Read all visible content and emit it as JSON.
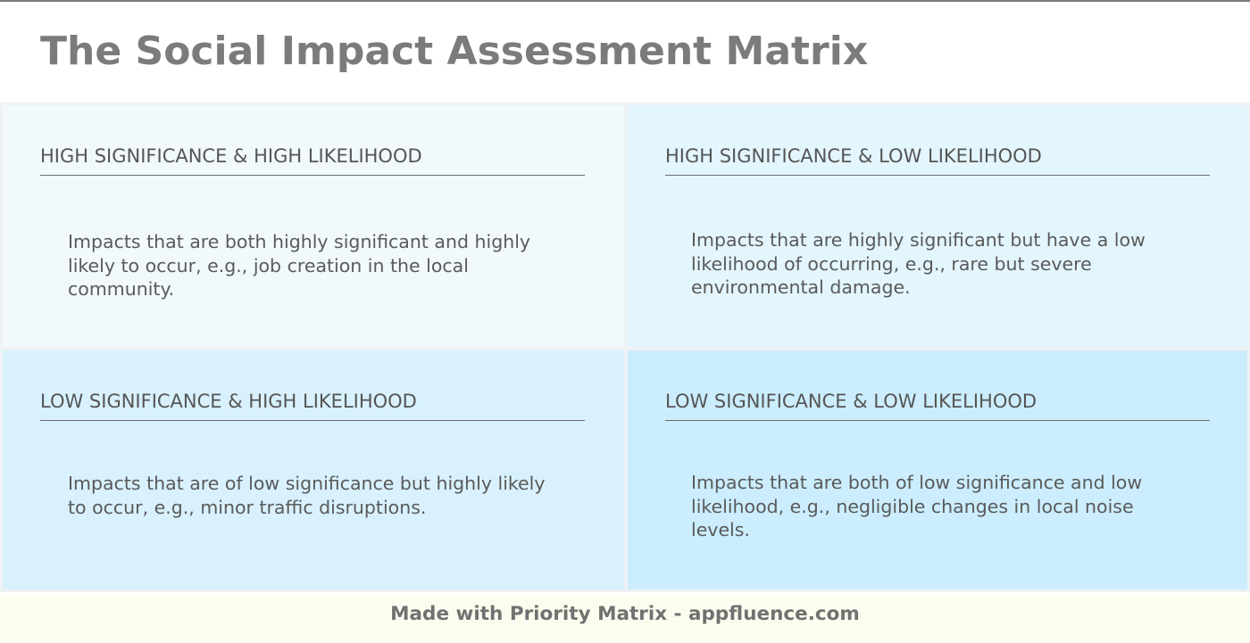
{
  "title": "The Social Impact Assessment Matrix",
  "quadrants": [
    {
      "heading": "HIGH SIGNIFICANCE & HIGH LIKELIHOOD",
      "text": "Impacts that are both highly significant and highly likely to occur, e.g., job creation in the local community.",
      "color": "#f1f9fd"
    },
    {
      "heading": "HIGH SIGNIFICANCE & LOW LIKELIHOOD",
      "text": "Impacts that are highly significant but have a low likelihood of occurring, e.g., rare but severe environmental damage.",
      "color": "#e3f5fd"
    },
    {
      "heading": "LOW SIGNIFICANCE & HIGH LIKELIHOOD",
      "text": "Impacts that are of low significance but highly likely to occur, e.g., minor traffic disruptions.",
      "color": "#d8f1fd"
    },
    {
      "heading": "LOW SIGNIFICANCE & LOW LIKELIHOOD",
      "text": "Impacts that are both of low significance and low likelihood, e.g., negligible changes in local noise levels.",
      "color": "#cbedfd"
    }
  ],
  "footer": {
    "text": "Made with Priority Matrix - appfluence.com"
  }
}
